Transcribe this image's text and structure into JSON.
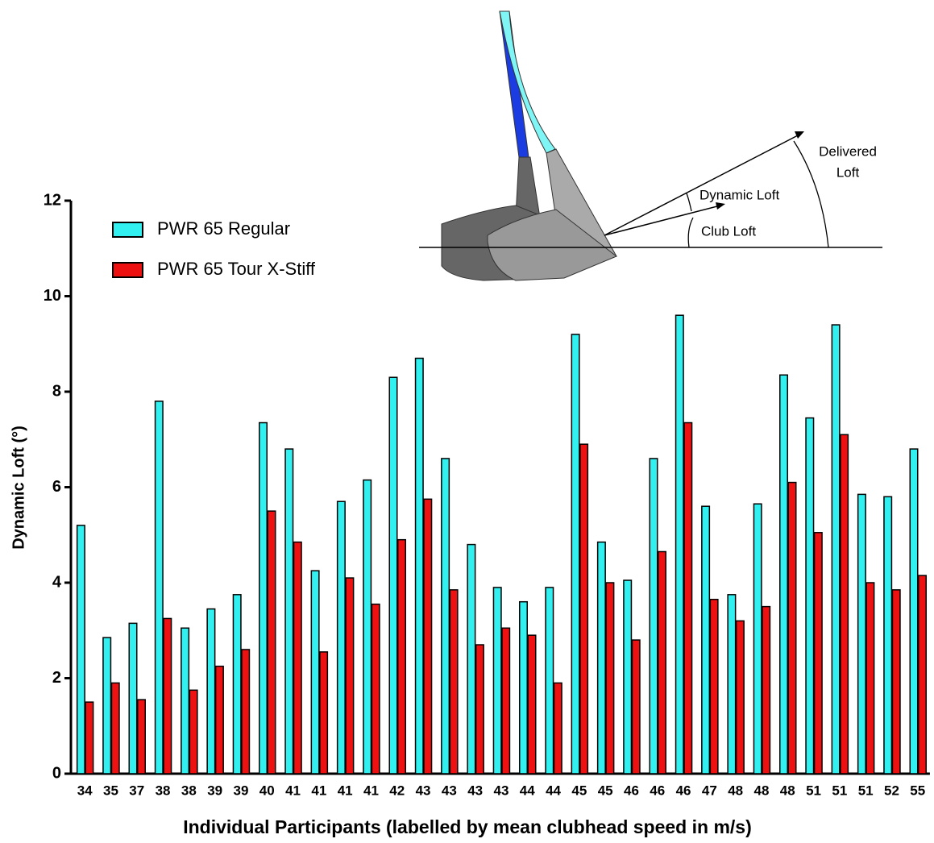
{
  "chart_data": {
    "type": "bar",
    "y_label": "Dynamic Loft (°)",
    "x_label": "Individual Participants (labelled by mean clubhead speed in m/s)",
    "categories": [
      "34",
      "35",
      "37",
      "38",
      "38",
      "39",
      "39",
      "40",
      "41",
      "41",
      "41",
      "41",
      "42",
      "43",
      "43",
      "43",
      "43",
      "44",
      "44",
      "45",
      "45",
      "46",
      "46",
      "46",
      "47",
      "48",
      "48",
      "48",
      "51",
      "51",
      "51",
      "52",
      "55"
    ],
    "series": [
      {
        "name": "PWR 65 Regular",
        "color": "#33f0f0",
        "values": [
          5.2,
          2.85,
          3.15,
          7.8,
          3.05,
          3.45,
          3.75,
          7.35,
          6.8,
          4.25,
          5.7,
          6.15,
          8.3,
          8.7,
          6.6,
          4.8,
          3.9,
          3.6,
          3.9,
          9.2,
          4.85,
          4.05,
          6.6,
          9.6,
          5.6,
          3.75,
          5.65,
          8.35,
          7.45,
          9.4,
          5.85,
          5.8,
          6.8
        ]
      },
      {
        "name": "PWR 65 Tour X-Stiff",
        "color": "#ee1111",
        "values": [
          1.5,
          1.9,
          1.55,
          3.25,
          1.75,
          2.25,
          2.6,
          5.5,
          4.85,
          2.55,
          4.1,
          3.55,
          4.9,
          5.75,
          3.85,
          2.7,
          3.05,
          2.9,
          1.9,
          6.9,
          4.0,
          2.8,
          4.65,
          7.35,
          3.65,
          3.2,
          3.5,
          6.1,
          5.05,
          7.1,
          4.0,
          3.85,
          4.15
        ]
      }
    ],
    "ylim": [
      0,
      12
    ],
    "yticks": [
      0,
      2,
      4,
      6,
      8,
      10,
      12
    ],
    "annotations": {
      "delivered_loft": [
        "Delivered",
        "Loft"
      ],
      "dynamic_loft": "Dynamic Loft",
      "club_loft": "Club Loft"
    }
  }
}
